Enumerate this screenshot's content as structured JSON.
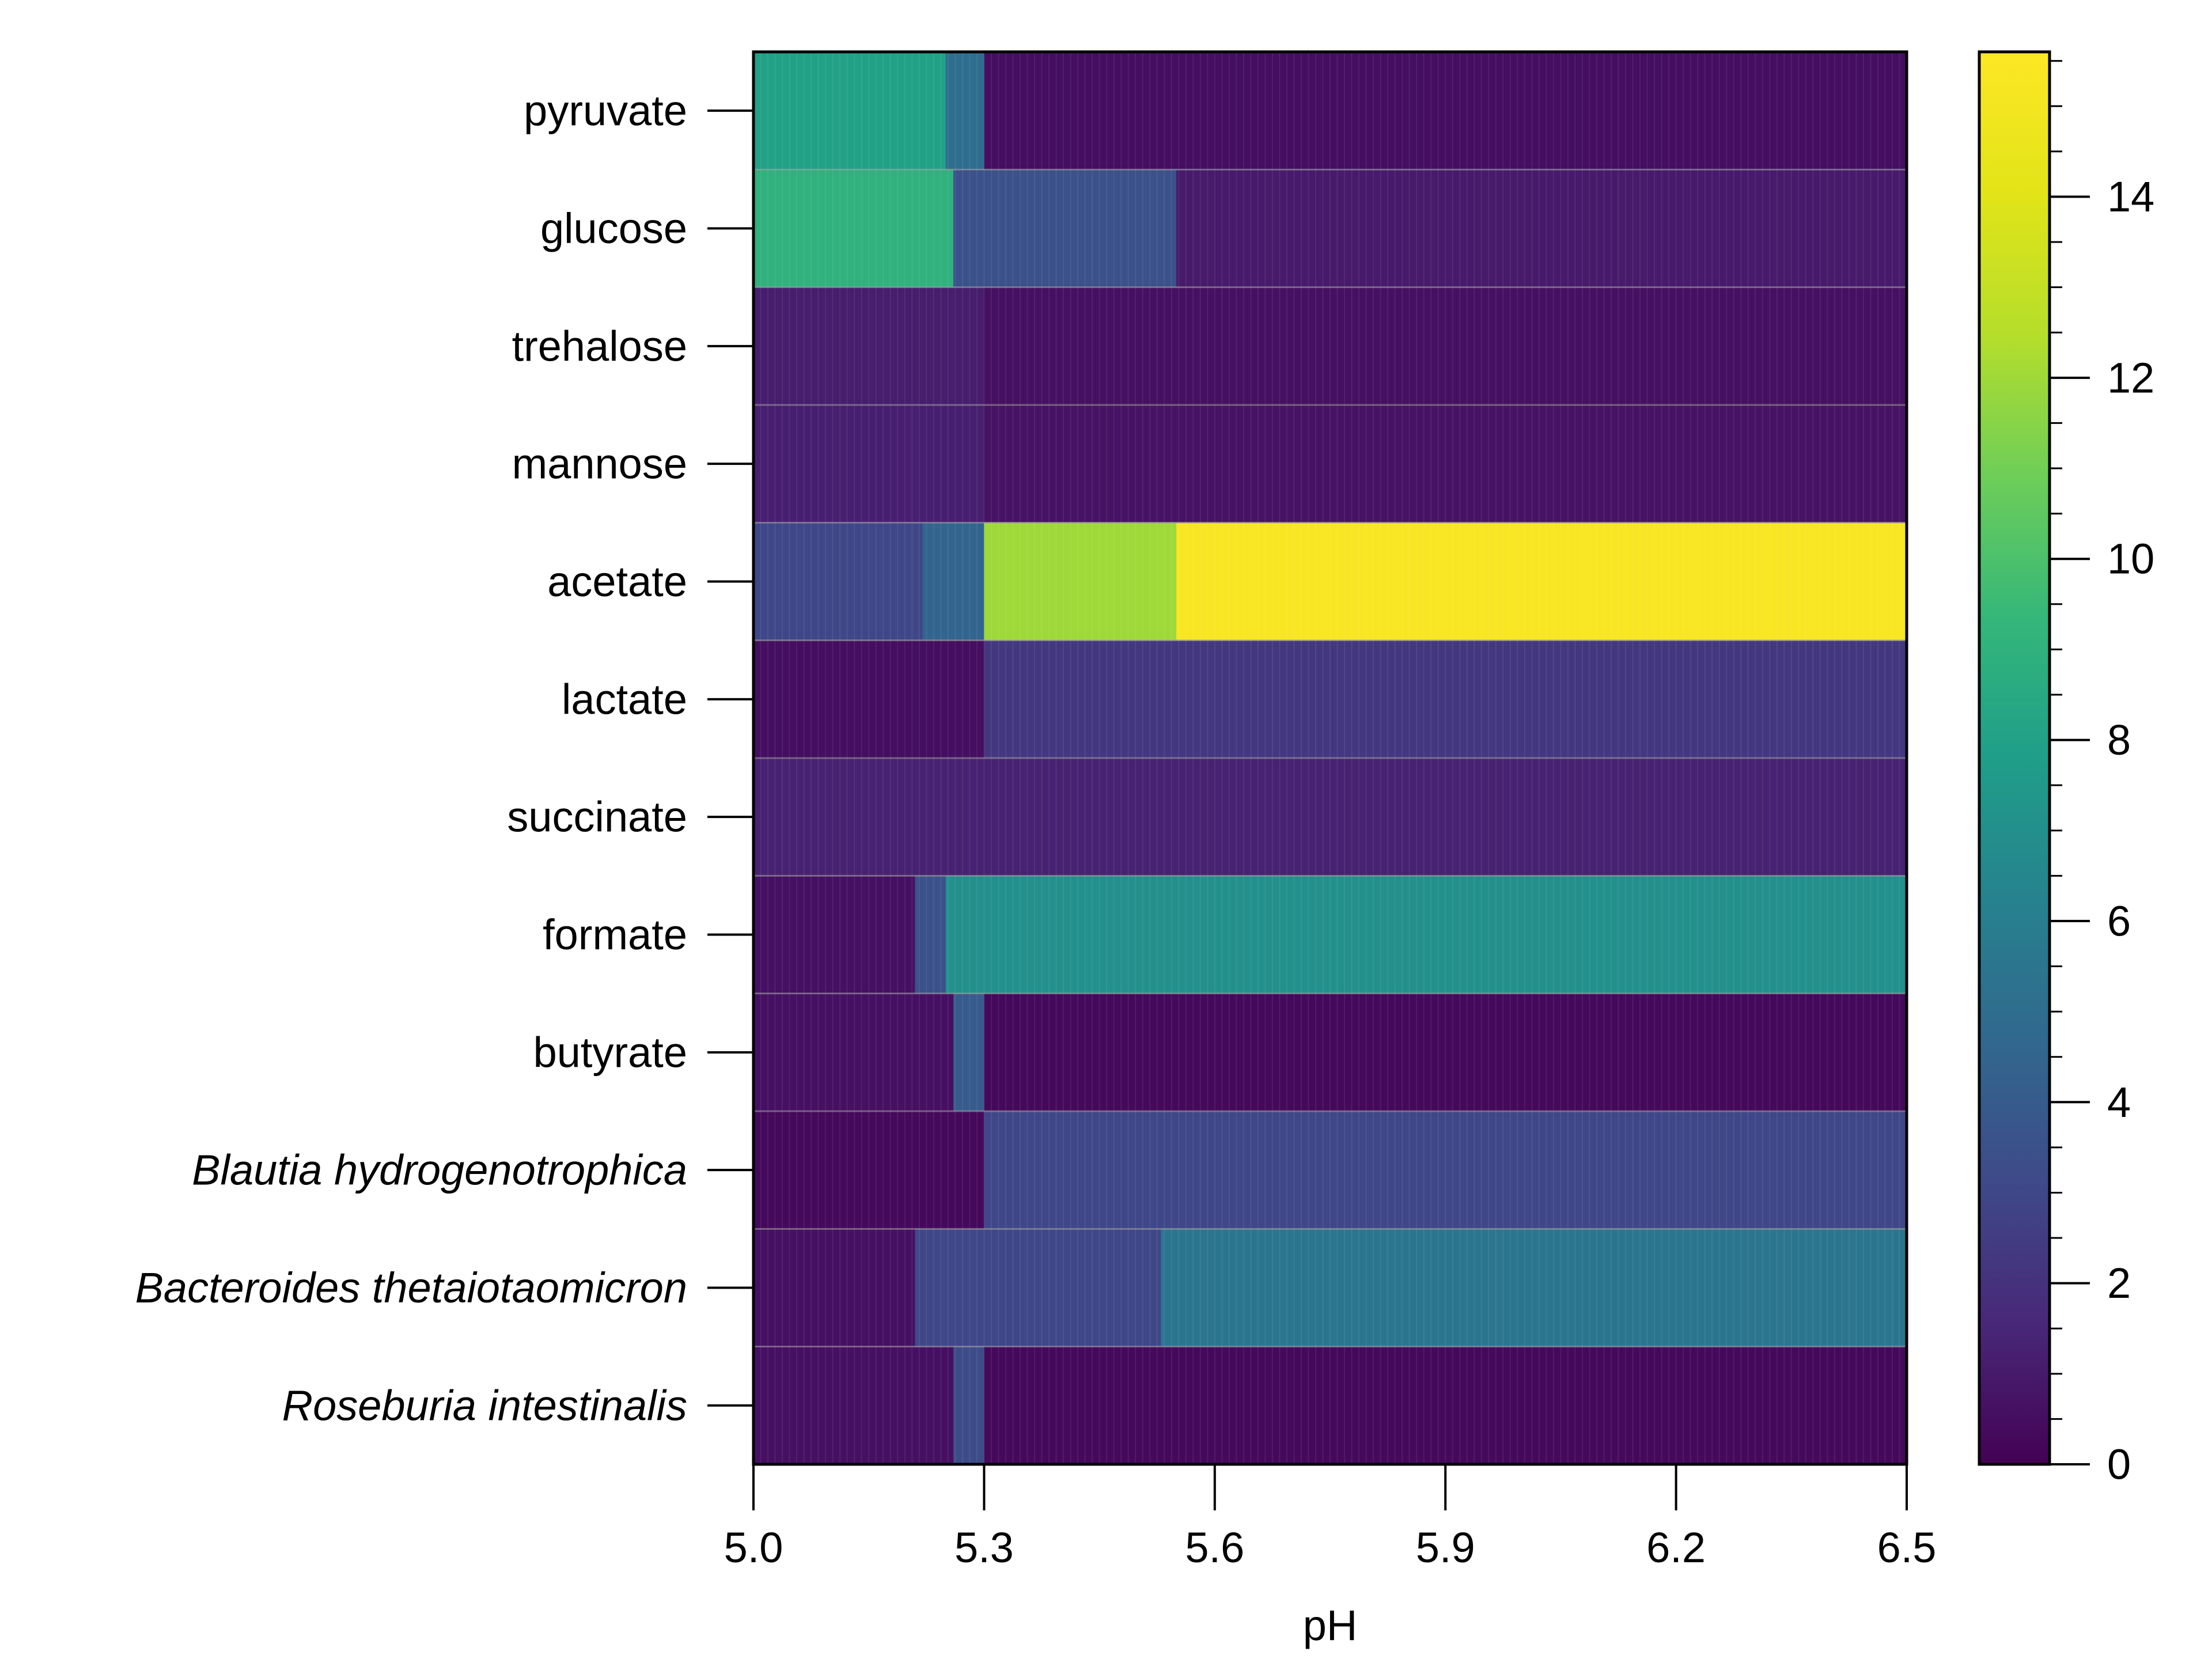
{
  "chart_data": {
    "type": "heatmap",
    "xlabel": "pH",
    "ylabel": "",
    "x_range": [
      5.0,
      6.5
    ],
    "x_ticks": [
      "5.0",
      "5.3",
      "5.6",
      "5.9",
      "6.2",
      "6.5"
    ],
    "colorbar": {
      "colormap": "viridis",
      "range": [
        0,
        15.6
      ],
      "ticks": [
        "0",
        "2",
        "4",
        "6",
        "8",
        "10",
        "12",
        "14"
      ]
    },
    "rows": [
      {
        "label": "pyruvate",
        "italic": false,
        "segments": [
          {
            "from": 5.0,
            "to": 5.25,
            "value": 8.0
          },
          {
            "from": 5.25,
            "to": 5.3,
            "value": 5.0
          },
          {
            "from": 5.3,
            "to": 6.5,
            "value": 0.5
          }
        ]
      },
      {
        "label": "glucose",
        "italic": false,
        "segments": [
          {
            "from": 5.0,
            "to": 5.26,
            "value": 9.0
          },
          {
            "from": 5.26,
            "to": 5.55,
            "value": 3.5
          },
          {
            "from": 5.55,
            "to": 6.5,
            "value": 1.0
          }
        ]
      },
      {
        "label": "trehalose",
        "italic": false,
        "segments": [
          {
            "from": 5.0,
            "to": 5.3,
            "value": 1.1
          },
          {
            "from": 5.3,
            "to": 6.5,
            "value": 0.6
          }
        ]
      },
      {
        "label": "mannose",
        "italic": false,
        "segments": [
          {
            "from": 5.0,
            "to": 5.3,
            "value": 1.2
          },
          {
            "from": 5.3,
            "to": 6.5,
            "value": 0.7
          }
        ]
      },
      {
        "label": "acetate",
        "italic": false,
        "segments": [
          {
            "from": 5.0,
            "to": 5.22,
            "value": 3.0
          },
          {
            "from": 5.22,
            "to": 5.3,
            "value": 4.5
          },
          {
            "from": 5.3,
            "to": 5.55,
            "value": 12.0
          },
          {
            "from": 5.55,
            "to": 6.5,
            "value": 15.3
          }
        ]
      },
      {
        "label": "lactate",
        "italic": false,
        "segments": [
          {
            "from": 5.0,
            "to": 5.3,
            "value": 0.5
          },
          {
            "from": 5.3,
            "to": 6.5,
            "value": 2.3
          }
        ]
      },
      {
        "label": "succinate",
        "italic": false,
        "segments": [
          {
            "from": 5.0,
            "to": 6.5,
            "value": 1.3
          }
        ]
      },
      {
        "label": "formate",
        "italic": false,
        "segments": [
          {
            "from": 5.0,
            "to": 5.21,
            "value": 0.6
          },
          {
            "from": 5.21,
            "to": 5.25,
            "value": 3.5
          },
          {
            "from": 5.25,
            "to": 6.5,
            "value": 7.0
          }
        ]
      },
      {
        "label": "butyrate",
        "italic": false,
        "segments": [
          {
            "from": 5.0,
            "to": 5.26,
            "value": 0.6
          },
          {
            "from": 5.26,
            "to": 5.3,
            "value": 4.0
          },
          {
            "from": 5.3,
            "to": 6.5,
            "value": 0.3
          }
        ]
      },
      {
        "label": "Blautia hydrogenotrophica",
        "italic": true,
        "segments": [
          {
            "from": 5.0,
            "to": 5.3,
            "value": 0.3
          },
          {
            "from": 5.3,
            "to": 6.5,
            "value": 3.0
          }
        ]
      },
      {
        "label": "Bacteroides thetaiotaomicron",
        "italic": true,
        "segments": [
          {
            "from": 5.0,
            "to": 5.21,
            "value": 0.6
          },
          {
            "from": 5.21,
            "to": 5.53,
            "value": 3.0
          },
          {
            "from": 5.53,
            "to": 6.5,
            "value": 5.5
          }
        ]
      },
      {
        "label": "Roseburia intestinalis",
        "italic": true,
        "segments": [
          {
            "from": 5.0,
            "to": 5.26,
            "value": 0.6
          },
          {
            "from": 5.26,
            "to": 5.3,
            "value": 3.2
          },
          {
            "from": 5.3,
            "to": 6.5,
            "value": 0.3
          }
        ]
      }
    ]
  }
}
